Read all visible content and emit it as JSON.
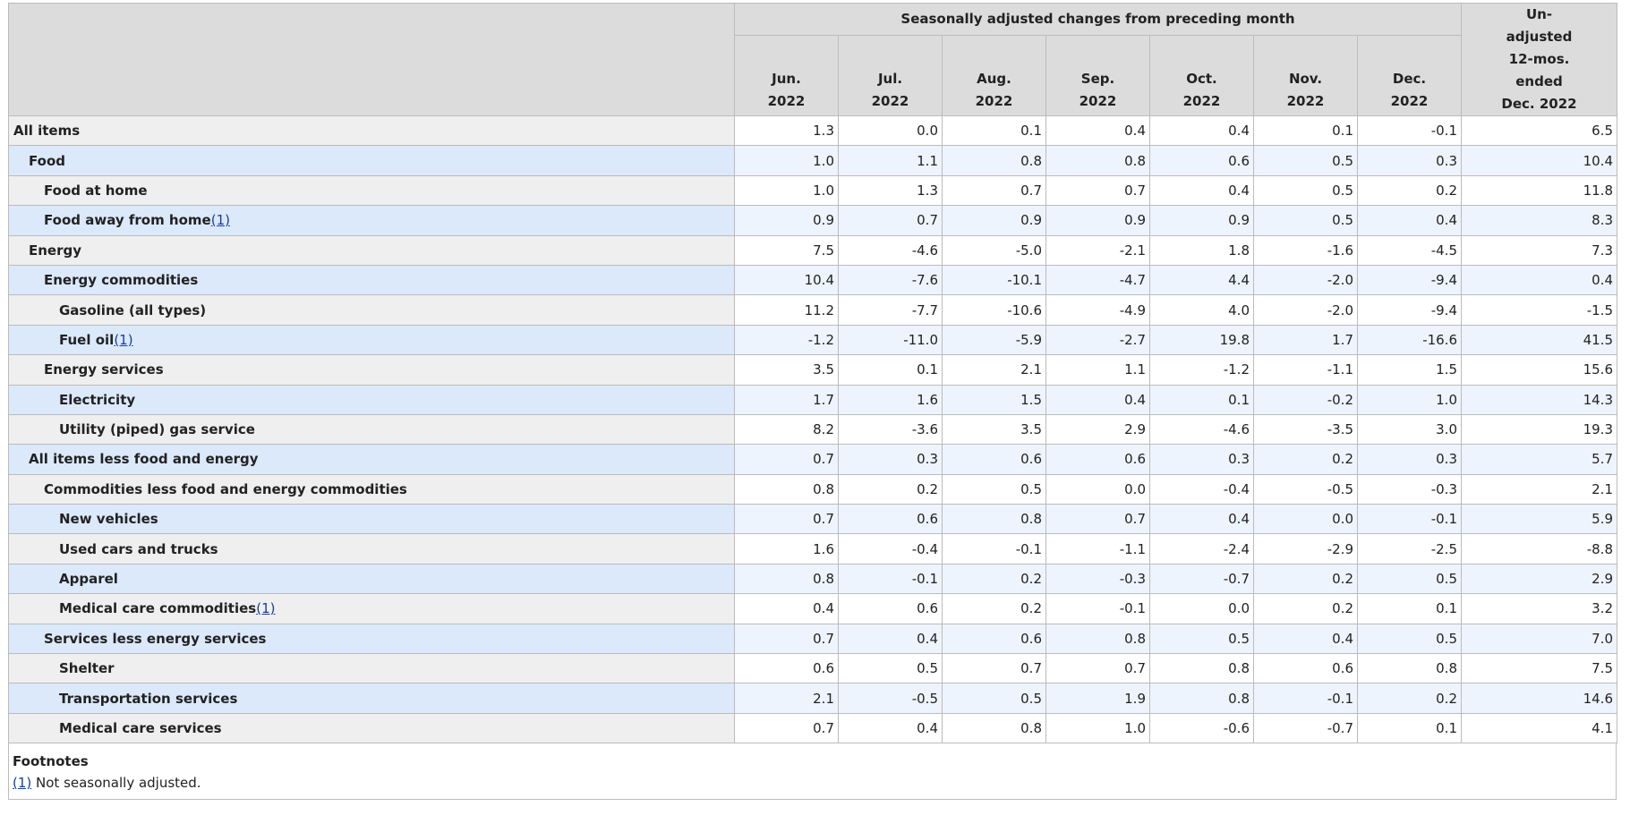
{
  "table": {
    "group_header": "Seasonally adjusted changes from preceding month",
    "columns": [
      [
        "Jun.",
        "2022"
      ],
      [
        "Jul.",
        "2022"
      ],
      [
        "Aug.",
        "2022"
      ],
      [
        "Sep.",
        "2022"
      ],
      [
        "Oct.",
        "2022"
      ],
      [
        "Nov.",
        "2022"
      ],
      [
        "Dec.",
        "2022"
      ]
    ],
    "last_column": [
      "Un-",
      "adjusted",
      "12-mos.",
      "ended",
      "Dec. 2022"
    ],
    "rows": [
      {
        "label": "All items",
        "indent": 0,
        "values": [
          "1.3",
          "0.0",
          "0.1",
          "0.4",
          "0.4",
          "0.1",
          "-0.1",
          "6.5"
        ]
      },
      {
        "label": "Food",
        "indent": 1,
        "values": [
          "1.0",
          "1.1",
          "0.8",
          "0.8",
          "0.6",
          "0.5",
          "0.3",
          "10.4"
        ]
      },
      {
        "label": "Food at home",
        "indent": 2,
        "values": [
          "1.0",
          "1.3",
          "0.7",
          "0.7",
          "0.4",
          "0.5",
          "0.2",
          "11.8"
        ]
      },
      {
        "label": "Food away from home",
        "note": "(1)",
        "indent": 2,
        "values": [
          "0.9",
          "0.7",
          "0.9",
          "0.9",
          "0.9",
          "0.5",
          "0.4",
          "8.3"
        ]
      },
      {
        "label": "Energy",
        "indent": 1,
        "values": [
          "7.5",
          "-4.6",
          "-5.0",
          "-2.1",
          "1.8",
          "-1.6",
          "-4.5",
          "7.3"
        ]
      },
      {
        "label": "Energy commodities",
        "indent": 2,
        "values": [
          "10.4",
          "-7.6",
          "-10.1",
          "-4.7",
          "4.4",
          "-2.0",
          "-9.4",
          "0.4"
        ]
      },
      {
        "label": "Gasoline (all types)",
        "indent": 3,
        "values": [
          "11.2",
          "-7.7",
          "-10.6",
          "-4.9",
          "4.0",
          "-2.0",
          "-9.4",
          "-1.5"
        ]
      },
      {
        "label": "Fuel oil",
        "note": "(1)",
        "indent": 3,
        "values": [
          "-1.2",
          "-11.0",
          "-5.9",
          "-2.7",
          "19.8",
          "1.7",
          "-16.6",
          "41.5"
        ]
      },
      {
        "label": "Energy services",
        "indent": 2,
        "values": [
          "3.5",
          "0.1",
          "2.1",
          "1.1",
          "-1.2",
          "-1.1",
          "1.5",
          "15.6"
        ]
      },
      {
        "label": "Electricity",
        "indent": 3,
        "values": [
          "1.7",
          "1.6",
          "1.5",
          "0.4",
          "0.1",
          "-0.2",
          "1.0",
          "14.3"
        ]
      },
      {
        "label": "Utility (piped) gas service",
        "indent": 3,
        "values": [
          "8.2",
          "-3.6",
          "3.5",
          "2.9",
          "-4.6",
          "-3.5",
          "3.0",
          "19.3"
        ]
      },
      {
        "label": "All items less food and energy",
        "indent": 1,
        "values": [
          "0.7",
          "0.3",
          "0.6",
          "0.6",
          "0.3",
          "0.2",
          "0.3",
          "5.7"
        ]
      },
      {
        "label": "Commodities less food and energy commodities",
        "indent": 2,
        "values": [
          "0.8",
          "0.2",
          "0.5",
          "0.0",
          "-0.4",
          "-0.5",
          "-0.3",
          "2.1"
        ]
      },
      {
        "label": "New vehicles",
        "indent": 3,
        "values": [
          "0.7",
          "0.6",
          "0.8",
          "0.7",
          "0.4",
          "0.0",
          "-0.1",
          "5.9"
        ]
      },
      {
        "label": "Used cars and trucks",
        "indent": 3,
        "values": [
          "1.6",
          "-0.4",
          "-0.1",
          "-1.1",
          "-2.4",
          "-2.9",
          "-2.5",
          "-8.8"
        ]
      },
      {
        "label": "Apparel",
        "indent": 3,
        "values": [
          "0.8",
          "-0.1",
          "0.2",
          "-0.3",
          "-0.7",
          "0.2",
          "0.5",
          "2.9"
        ]
      },
      {
        "label": "Medical care commodities",
        "note": "(1)",
        "indent": 3,
        "values": [
          "0.4",
          "0.6",
          "0.2",
          "-0.1",
          "0.0",
          "0.2",
          "0.1",
          "3.2"
        ]
      },
      {
        "label": "Services less energy services",
        "indent": 2,
        "values": [
          "0.7",
          "0.4",
          "0.6",
          "0.8",
          "0.5",
          "0.4",
          "0.5",
          "7.0"
        ]
      },
      {
        "label": "Shelter",
        "indent": 3,
        "values": [
          "0.6",
          "0.5",
          "0.7",
          "0.7",
          "0.8",
          "0.6",
          "0.8",
          "7.5"
        ]
      },
      {
        "label": "Transportation services",
        "indent": 3,
        "values": [
          "2.1",
          "-0.5",
          "0.5",
          "1.9",
          "0.8",
          "-0.1",
          "0.2",
          "14.6"
        ]
      },
      {
        "label": "Medical care services",
        "indent": 3,
        "values": [
          "0.7",
          "0.4",
          "0.8",
          "1.0",
          "-0.6",
          "-0.7",
          "0.1",
          "4.1"
        ]
      }
    ]
  },
  "footnotes": {
    "title": "Footnotes",
    "items": [
      {
        "marker": "(1)",
        "text": " Not seasonally adjusted."
      }
    ]
  }
}
